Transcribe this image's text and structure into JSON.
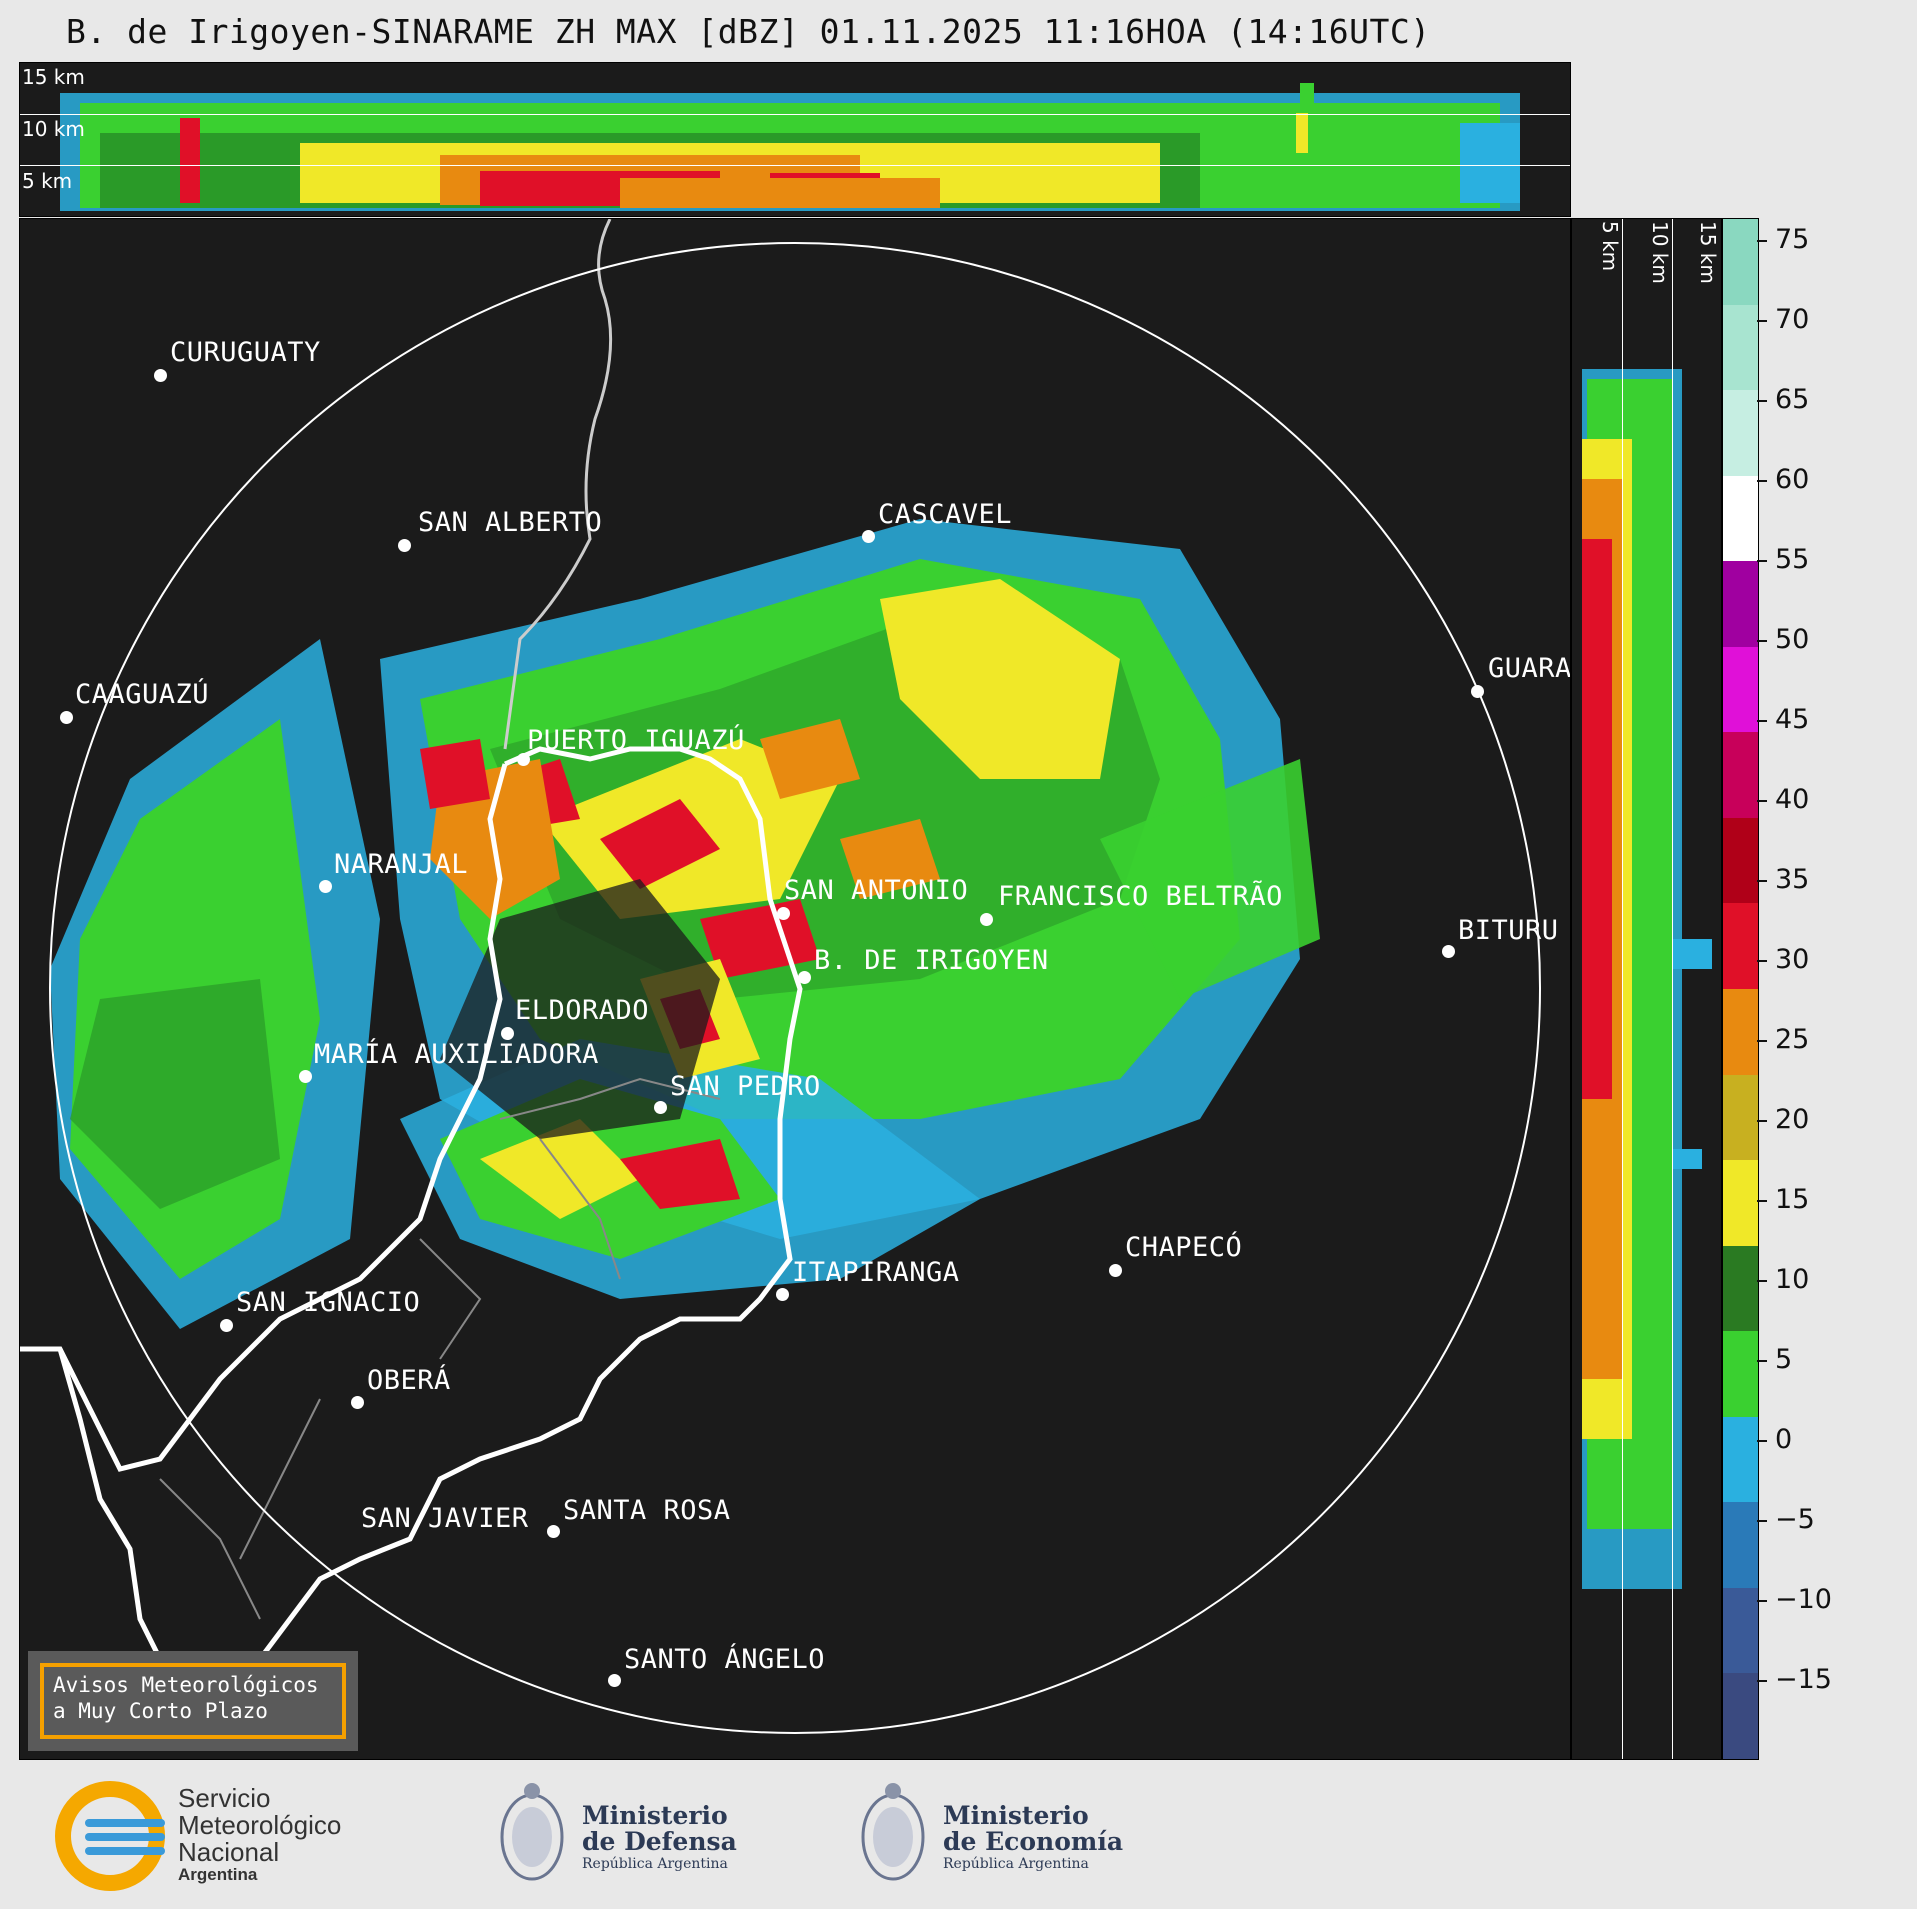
{
  "title": "B. de Irigoyen-SINARAME ZH MAX [dBZ] 01.11.2025 11:16HOA (14:16UTC)",
  "top_panel": {
    "km_labels": [
      "15 km",
      "10 km",
      "5 km"
    ]
  },
  "side_panel": {
    "km_labels": [
      "5 km",
      "10 km",
      "15 km"
    ]
  },
  "colorbar": {
    "ticks": [
      "75",
      "70",
      "65",
      "60",
      "55",
      "50",
      "45",
      "40",
      "35",
      "30",
      "25",
      "20",
      "15",
      "10",
      "5",
      "0",
      "−5",
      "−10",
      "−15"
    ],
    "colors": [
      "#8ad8c0",
      "#a8e4d0",
      "#c6eee2",
      "#ffffff",
      "#a000a0",
      "#e010d8",
      "#c8005a",
      "#b00018",
      "#e01028",
      "#e88a10",
      "#c8b020",
      "#f0e828",
      "#2a7a22",
      "#3ad030",
      "#2ab0e0",
      "#2a7ab8",
      "#3a5a98",
      "#3a4a80"
    ]
  },
  "cities": [
    {
      "name": "CURUGUATY"
    },
    {
      "name": "SAN ALBERTO"
    },
    {
      "name": "CAAGUAZÚ"
    },
    {
      "name": "CASCAVEL"
    },
    {
      "name": "GUARA"
    },
    {
      "name": "PUERTO IGUAZÚ"
    },
    {
      "name": "NARANJAL"
    },
    {
      "name": "SAN ANTONIO"
    },
    {
      "name": "FRANCISCO BELTRÃO"
    },
    {
      "name": "BITURU"
    },
    {
      "name": "B. DE IRIGOYEN"
    },
    {
      "name": "ELDORADO"
    },
    {
      "name": "MARÍA AUXILIADORA"
    },
    {
      "name": "SAN PEDRO"
    },
    {
      "name": "CHAPECÓ"
    },
    {
      "name": "ITAPIRANGA"
    },
    {
      "name": "SAN IGNACIO"
    },
    {
      "name": "OBERÁ"
    },
    {
      "name": "SAN JAVIER"
    },
    {
      "name": "SANTA ROSA"
    },
    {
      "name": "SANTO ÁNGELO"
    }
  ],
  "warning_box": {
    "line1": "Avisos Meteorológicos",
    "line2": "a Muy Corto Plazo"
  },
  "logos": {
    "smn": {
      "line1": "Servicio",
      "line2": "Meteorológico",
      "line3": "Nacional",
      "line4": "Argentina"
    },
    "defensa": {
      "line1": "Ministerio",
      "line2": "de Defensa",
      "line3": "República Argentina"
    },
    "economia": {
      "line1": "Ministerio",
      "line2": "de Economía",
      "line3": "República Argentina"
    }
  }
}
